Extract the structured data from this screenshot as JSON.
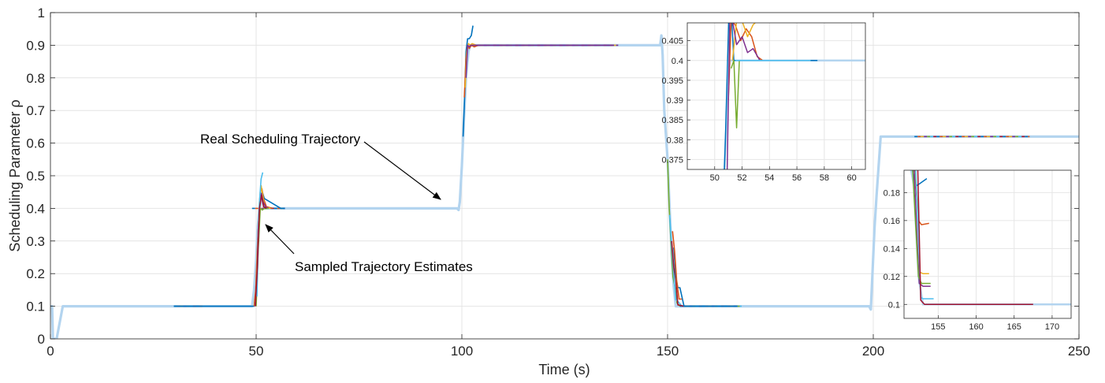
{
  "chart_data": {
    "type": "line",
    "xlabel": "Time (s)",
    "ylabel": "Scheduling Parameter ρ",
    "xlim": [
      0,
      250
    ],
    "ylim": [
      0,
      1
    ],
    "xticks": [
      0,
      50,
      100,
      150,
      200,
      250
    ],
    "yticks": [
      0,
      0.1,
      0.2,
      0.3,
      0.4,
      0.5,
      0.6,
      0.7,
      0.8,
      0.9,
      1
    ],
    "grid": true,
    "legend": "none",
    "colors": {
      "real": "#b3d4ef",
      "estimates": [
        "#0072bd",
        "#d95319",
        "#edb120",
        "#7e2f8e",
        "#77ac30",
        "#4dbeee",
        "#a2142f"
      ]
    },
    "real_trajectory": {
      "x": [
        0,
        0.4,
        0.6,
        1.5,
        3,
        49,
        49.5,
        50,
        50.3,
        50.8,
        51.5,
        52,
        98,
        98.8,
        99.2,
        99.5,
        100,
        100.5,
        101,
        101.6,
        102,
        147.8,
        148.2,
        148.5,
        148.8,
        149.2,
        150,
        150.5,
        151,
        151.5,
        152,
        152.5,
        199,
        199.4,
        199.8,
        200.3,
        200.8,
        201.3,
        201.8,
        250
      ],
      "y": [
        0.1,
        0.1,
        0,
        0,
        0.1,
        0.1,
        0.15,
        0.24,
        0.33,
        0.4,
        0.43,
        0.4,
        0.4,
        0.4,
        0.395,
        0.42,
        0.53,
        0.67,
        0.8,
        0.88,
        0.9,
        0.9,
        0.9,
        0.93,
        0.87,
        0.7,
        0.55,
        0.4,
        0.26,
        0.16,
        0.1,
        0.1,
        0.1,
        0.09,
        0.2,
        0.34,
        0.44,
        0.53,
        0.62,
        0.62
      ]
    },
    "estimates": [
      {
        "x": [
          30,
          37,
          37,
          49.5,
          49.8,
          50.2,
          50.6,
          51,
          51.5,
          52,
          56,
          57
        ],
        "y": [
          0.1,
          0.1,
          0.1,
          0.1,
          0.12,
          0.23,
          0.35,
          0.44,
          0.45,
          0.43,
          0.4,
          0.4
        ]
      },
      {
        "x": [
          49.5,
          49.9,
          50.3,
          50.7,
          51,
          51.4,
          51.8,
          52.5,
          54
        ],
        "y": [
          0.1,
          0.15,
          0.28,
          0.38,
          0.45,
          0.46,
          0.43,
          0.405,
          0.4
        ]
      },
      {
        "x": [
          49.6,
          50,
          50.4,
          50.8,
          51.2,
          51.6,
          52,
          52.6,
          53.5
        ],
        "y": [
          0.1,
          0.13,
          0.3,
          0.42,
          0.47,
          0.44,
          0.41,
          0.402,
          0.4
        ]
      },
      {
        "x": [
          49.7,
          50.1,
          50.5,
          50.9,
          51.3,
          51.7,
          52.3,
          53
        ],
        "y": [
          0.1,
          0.14,
          0.33,
          0.43,
          0.445,
          0.42,
          0.405,
          0.4
        ]
      },
      {
        "x": [
          50,
          50.5,
          51,
          51.5,
          52,
          53
        ],
        "y": [
          0.1,
          0.27,
          0.4,
          0.395,
          0.4,
          0.4
        ]
      },
      {
        "x": [
          50.2,
          50.7,
          51.2,
          51.6
        ],
        "y": [
          0.13,
          0.4,
          0.49,
          0.51
        ]
      },
      {
        "x": [
          49.8,
          50.3,
          50.8,
          51.3,
          51.8,
          52.5
        ],
        "y": [
          0.1,
          0.22,
          0.4,
          0.44,
          0.405,
          0.4
        ]
      },
      {
        "x": [
          100.3,
          100.7,
          101,
          101.4,
          101.8,
          102.3,
          102.7
        ],
        "y": [
          0.62,
          0.75,
          0.88,
          0.92,
          0.92,
          0.93,
          0.96
        ]
      },
      {
        "x": [
          100.6,
          101,
          101.4,
          101.8,
          102.3,
          103,
          104
        ],
        "y": [
          0.74,
          0.86,
          0.9,
          0.89,
          0.9,
          0.895,
          0.9
        ]
      },
      {
        "x": [
          100.8,
          101.2,
          101.6,
          102,
          102.5,
          103.5
        ],
        "y": [
          0.77,
          0.88,
          0.905,
          0.9,
          0.905,
          0.9
        ]
      },
      {
        "x": [
          101,
          101.4,
          101.8,
          102.2,
          103,
          104,
          137
        ],
        "y": [
          0.8,
          0.9,
          0.895,
          0.9,
          0.9,
          0.9,
          0.9
        ]
      },
      {
        "x": [
          150,
          150.4,
          150.8,
          151.3,
          151.8,
          152.3,
          153
        ],
        "y": [
          0.55,
          0.4,
          0.3,
          0.19,
          0.16,
          0.11,
          0.1
        ]
      },
      {
        "x": [
          150.5,
          151,
          151.5,
          152,
          152.5,
          153.5
        ],
        "y": [
          0.38,
          0.28,
          0.2,
          0.12,
          0.115,
          0.1
        ]
      },
      {
        "x": [
          151,
          151.5,
          152,
          152.5,
          153,
          154
        ],
        "y": [
          0.3,
          0.22,
          0.18,
          0.104,
          0.103,
          0.1
        ]
      },
      {
        "x": [
          151.5,
          152,
          152.5,
          153,
          154,
          167
        ],
        "y": [
          0.28,
          0.19,
          0.157,
          0.157,
          0.1,
          0.1
        ]
      },
      {
        "x": [
          151.2,
          151.7,
          152.2,
          152.8,
          153.5
        ],
        "y": [
          0.33,
          0.27,
          0.18,
          0.122,
          0.122
        ]
      }
    ],
    "dashed_segments": [
      {
        "x": [
          30,
          37
        ],
        "y": [
          0.1,
          0.1
        ]
      },
      {
        "x": [
          49,
          57
        ],
        "y": [
          0.4,
          0.4
        ]
      },
      {
        "x": [
          103,
          138
        ],
        "y": [
          0.9,
          0.9
        ]
      },
      {
        "x": [
          153,
          168
        ],
        "y": [
          0.1,
          0.1
        ]
      },
      {
        "x": [
          210,
          238
        ],
        "y": [
          0.62,
          0.62
        ]
      }
    ],
    "annotations": [
      {
        "text": "Real Scheduling Trajectory",
        "x": 82,
        "y": 0.62
      },
      {
        "text": "Sampled Trajectory Estimates",
        "x": 54,
        "y": 0.22
      }
    ],
    "insets": [
      {
        "xlim": [
          48,
          61
        ],
        "ylim": [
          0.3725,
          0.4095
        ],
        "xticks": [
          50,
          52,
          54,
          56,
          58,
          60
        ],
        "yticks": [
          0.375,
          0.38,
          0.385,
          0.39,
          0.395,
          0.4,
          0.405
        ],
        "ytick_labels": [
          "0.375",
          "0.38",
          "0.385",
          "0.39",
          "0.395",
          "0.4",
          "0.405"
        ],
        "lines": [
          {
            "x": [
              50.7,
              50.9,
              51.1,
              51.4,
              51.8,
              52.3,
              57.5
            ],
            "y": [
              0.37,
              0.395,
              0.42,
              0.4,
              0.4,
              0.4,
              0.4
            ]
          },
          {
            "x": [
              51,
              51.2,
              51.5,
              51.9,
              52.3,
              52.7,
              53.1,
              53.5
            ],
            "y": [
              0.39,
              0.41,
              0.409,
              0.405,
              0.408,
              0.406,
              0.401,
              0.4
            ]
          },
          {
            "x": [
              51.3,
              51.6,
              52,
              52.4,
              52.8,
              53.1
            ],
            "y": [
              0.4,
              0.41,
              0.41,
              0.406,
              0.409,
              0.41
            ]
          },
          {
            "x": [
              50.9,
              51.1,
              51.3,
              51.6,
              52,
              52.4,
              52.8,
              53.3,
              53.6
            ],
            "y": [
              0.37,
              0.41,
              0.41,
              0.404,
              0.406,
              0.402,
              0.403,
              0.4,
              0.4
            ]
          },
          {
            "x": [
              51.2,
              51.4,
              51.6,
              51.8,
              52.2,
              53
            ],
            "y": [
              0.398,
              0.4,
              0.383,
              0.4,
              0.4,
              0.4
            ]
          },
          {
            "x": [
              51.5,
              51.8,
              52.2,
              57
            ],
            "y": [
              0.4,
              0.4,
              0.4,
              0.4
            ]
          }
        ],
        "real": {
          "x": [
            50.5,
            50.8,
            51.1,
            51.4,
            61
          ],
          "y": [
            0.36,
            0.38,
            0.4,
            0.4,
            0.4
          ]
        }
      },
      {
        "xlim": [
          150.5,
          172.5
        ],
        "ylim": [
          0.09,
          0.196
        ],
        "xticks": [
          155,
          160,
          165,
          170
        ],
        "yticks": [
          0.1,
          0.12,
          0.14,
          0.16,
          0.18
        ],
        "ytick_labels": [
          "0.1",
          "0.12",
          "0.14",
          "0.16",
          "0.18"
        ],
        "lines": [
          {
            "x": [
              151.5,
              151.8,
              152.2,
              153.5
            ],
            "y": [
              0.2,
              0.19,
              0.185,
              0.19
            ]
          },
          {
            "x": [
              151.7,
              152,
              152.4,
              152.8,
              153.8
            ],
            "y": [
              0.2,
              0.19,
              0.16,
              0.157,
              0.158
            ]
          },
          {
            "x": [
              151.9,
              152.3,
              152.6,
              153,
              153.8
            ],
            "y": [
              0.2,
              0.17,
              0.123,
              0.122,
              0.122
            ]
          },
          {
            "x": [
              151.8,
              152.2,
              152.5,
              153,
              154
            ],
            "y": [
              0.2,
              0.15,
              0.115,
              0.113,
              0.113
            ]
          },
          {
            "x": [
              151.6,
              152,
              152.4,
              152.8,
              154
            ],
            "y": [
              0.2,
              0.16,
              0.12,
              0.115,
              0.115
            ]
          },
          {
            "x": [
              152,
              152.4,
              152.7,
              153,
              154.4
            ],
            "y": [
              0.2,
              0.15,
              0.105,
              0.104,
              0.104
            ]
          },
          {
            "x": [
              152.3,
              152.7,
              153.2,
              167.5
            ],
            "y": [
              0.2,
              0.103,
              0.1,
              0.1
            ]
          }
        ],
        "real": {
          "x": [
            151.3,
            151.8,
            152.4,
            153,
            172.5
          ],
          "y": [
            0.2,
            0.185,
            0.12,
            0.1,
            0.1
          ]
        }
      }
    ]
  }
}
